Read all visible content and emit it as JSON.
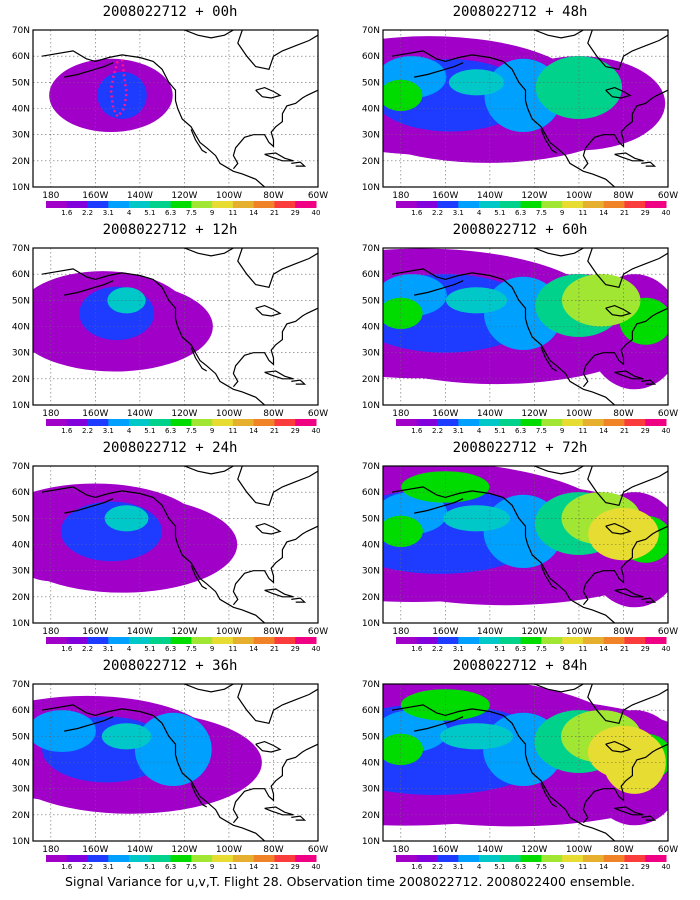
{
  "caption": "Signal Variance for u,v,T. Flight 28. Observation time 2008022712. 2008022400 ensemble.",
  "colorbar": {
    "labels": [
      "1.6",
      "2.2",
      "3.1",
      "4",
      "5.1",
      "6.3",
      "7.5",
      "9",
      "11",
      "14",
      "21",
      "29",
      "40"
    ],
    "colors": [
      "#a000c8",
      "#8200dc",
      "#1e3cff",
      "#00a0ff",
      "#00c8c8",
      "#00d28c",
      "#00dc00",
      "#a0e632",
      "#e6dc32",
      "#e6af2d",
      "#f08228",
      "#fa3c3c",
      "#f00082"
    ]
  },
  "axes": {
    "lon_labels": [
      "180",
      "160W",
      "140W",
      "120W",
      "100W",
      "80W",
      "60W"
    ],
    "lat_labels": [
      "10N",
      "20N",
      "30N",
      "40N",
      "50N",
      "60N",
      "70N"
    ]
  },
  "panels": [
    {
      "id": "p00",
      "title": "2008022712 + 00h",
      "col": 0,
      "row": 0,
      "hours": 0,
      "flight_track": true
    },
    {
      "id": "p48",
      "title": "2008022712 + 48h",
      "col": 1,
      "row": 0,
      "hours": 48,
      "flight_track": false
    },
    {
      "id": "p12",
      "title": "2008022712 + 12h",
      "col": 0,
      "row": 1,
      "hours": 12,
      "flight_track": false
    },
    {
      "id": "p60",
      "title": "2008022712 + 60h",
      "col": 1,
      "row": 1,
      "hours": 60,
      "flight_track": false
    },
    {
      "id": "p24",
      "title": "2008022712 + 24h",
      "col": 0,
      "row": 2,
      "hours": 24,
      "flight_track": false
    },
    {
      "id": "p72",
      "title": "2008022712 + 72h",
      "col": 1,
      "row": 2,
      "hours": 72,
      "flight_track": false
    },
    {
      "id": "p36",
      "title": "2008022712 + 36h",
      "col": 0,
      "row": 3,
      "hours": 36,
      "flight_track": false
    },
    {
      "id": "p84",
      "title": "2008022712 + 84h",
      "col": 1,
      "row": 3,
      "hours": 84,
      "flight_track": false
    }
  ]
}
